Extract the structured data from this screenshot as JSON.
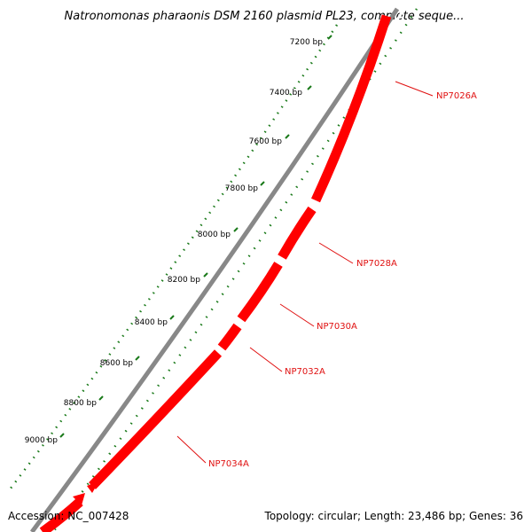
{
  "title": "Natronomonas pharaonis DSM 2160 plasmid PL23, complete seque...",
  "footer": {
    "accession": "Accession: NC_007428",
    "summary": "Topology: circular; Length: 23,486 bp; Genes: 36"
  },
  "ticks": [
    {
      "bp": 7200,
      "label": "7200 bp"
    },
    {
      "bp": 7400,
      "label": "7400 bp"
    },
    {
      "bp": 7600,
      "label": "7600 bp"
    },
    {
      "bp": 7800,
      "label": "7800 bp"
    },
    {
      "bp": 8000,
      "label": "8000 bp"
    },
    {
      "bp": 8200,
      "label": "8200 bp"
    },
    {
      "bp": 8400,
      "label": "8400 bp"
    },
    {
      "bp": 8600,
      "label": "8600 bp"
    },
    {
      "bp": 8800,
      "label": "8800 bp"
    },
    {
      "bp": 9000,
      "label": "9000 bp"
    }
  ],
  "genes": [
    {
      "name": "NP7026A"
    },
    {
      "name": "NP7028A"
    },
    {
      "name": "NP7030A"
    },
    {
      "name": "NP7032A"
    },
    {
      "name": "NP7034A"
    }
  ],
  "colors": {
    "gene": "#ff0000",
    "gene_edge": "#c80000",
    "backbone": "#808080",
    "ticks": "#1a7a1a",
    "label": "#e01010"
  }
}
